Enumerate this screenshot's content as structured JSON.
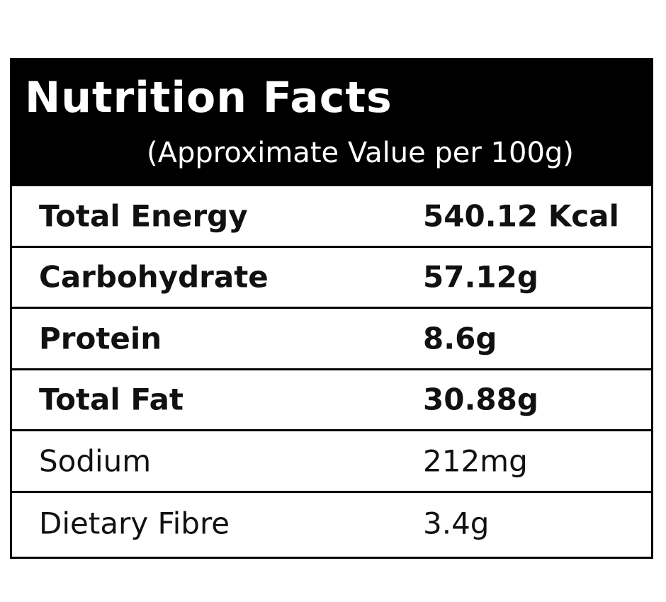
{
  "header": {
    "title": "Nutrition Facts",
    "subtitle": "(Approximate Value per 100g)"
  },
  "table": {
    "rows": [
      [
        "Total Energy",
        "540.12 Kcal"
      ],
      [
        "Carbohydrate",
        "57.12g"
      ],
      [
        "Protein",
        "8.6g"
      ],
      [
        "Total Fat",
        "30.88g"
      ],
      [
        "Sodium",
        "212mg"
      ],
      [
        "Dietary Fibre",
        "3.4g"
      ]
    ]
  }
}
